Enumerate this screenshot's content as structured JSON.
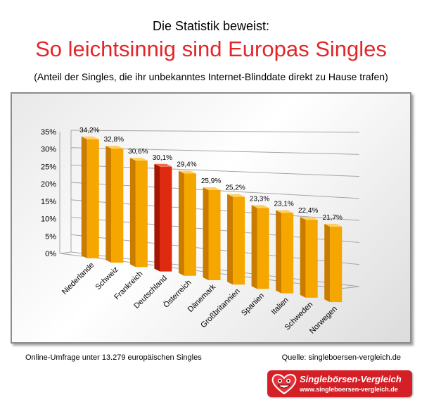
{
  "header": {
    "supertitle": "Die Statistik beweist:",
    "title": "So leichtsinnig sind Europas Singles",
    "subtitle": "(Anteil der Singles, die ihr unbekanntes Internet-Blinddate direkt zu Hause trafen)"
  },
  "chart_data": {
    "type": "bar",
    "categories": [
      "Niederlande",
      "Schweiz",
      "Frankreich",
      "Deutschland",
      "Österreich",
      "Dänemark",
      "Großbritannien",
      "Spanien",
      "Italien",
      "Schweden",
      "Norwegen"
    ],
    "values": [
      34.2,
      32.8,
      30.6,
      30.1,
      29.4,
      25.9,
      25.2,
      23.3,
      23.1,
      22.4,
      21.7
    ],
    "value_labels": [
      "34,2%",
      "32,8%",
      "30,6%",
      "30,1%",
      "29,4%",
      "25,9%",
      "25,2%",
      "23,3%",
      "23,1%",
      "22,4%",
      "21,7%"
    ],
    "ylim": [
      0,
      35
    ],
    "yticks": [
      0,
      5,
      10,
      15,
      20,
      25,
      30,
      35
    ],
    "ytick_labels": [
      "0%",
      "5%",
      "10%",
      "15%",
      "20%",
      "25%",
      "30%",
      "35%"
    ],
    "highlight_index": 3,
    "grid": true,
    "style": "3d-perspective",
    "colors": {
      "bar": "#f5a700",
      "bar_side": "#c97c00",
      "bar_top": "#ffd060",
      "highlight": "#e02a0f",
      "highlight_side": "#a51600",
      "highlight_top": "#f36a4a"
    }
  },
  "footer": {
    "note": "Online-Umfrage unter 13.279 europäischen Singles",
    "source": "Quelle: singleboersen-vergleich.de"
  },
  "logo": {
    "name": "Singlebörsen-Vergleich",
    "url": "www.singleboersen-vergleich.de",
    "colors": {
      "background": "#d41f26",
      "text": "#ffffff"
    }
  }
}
